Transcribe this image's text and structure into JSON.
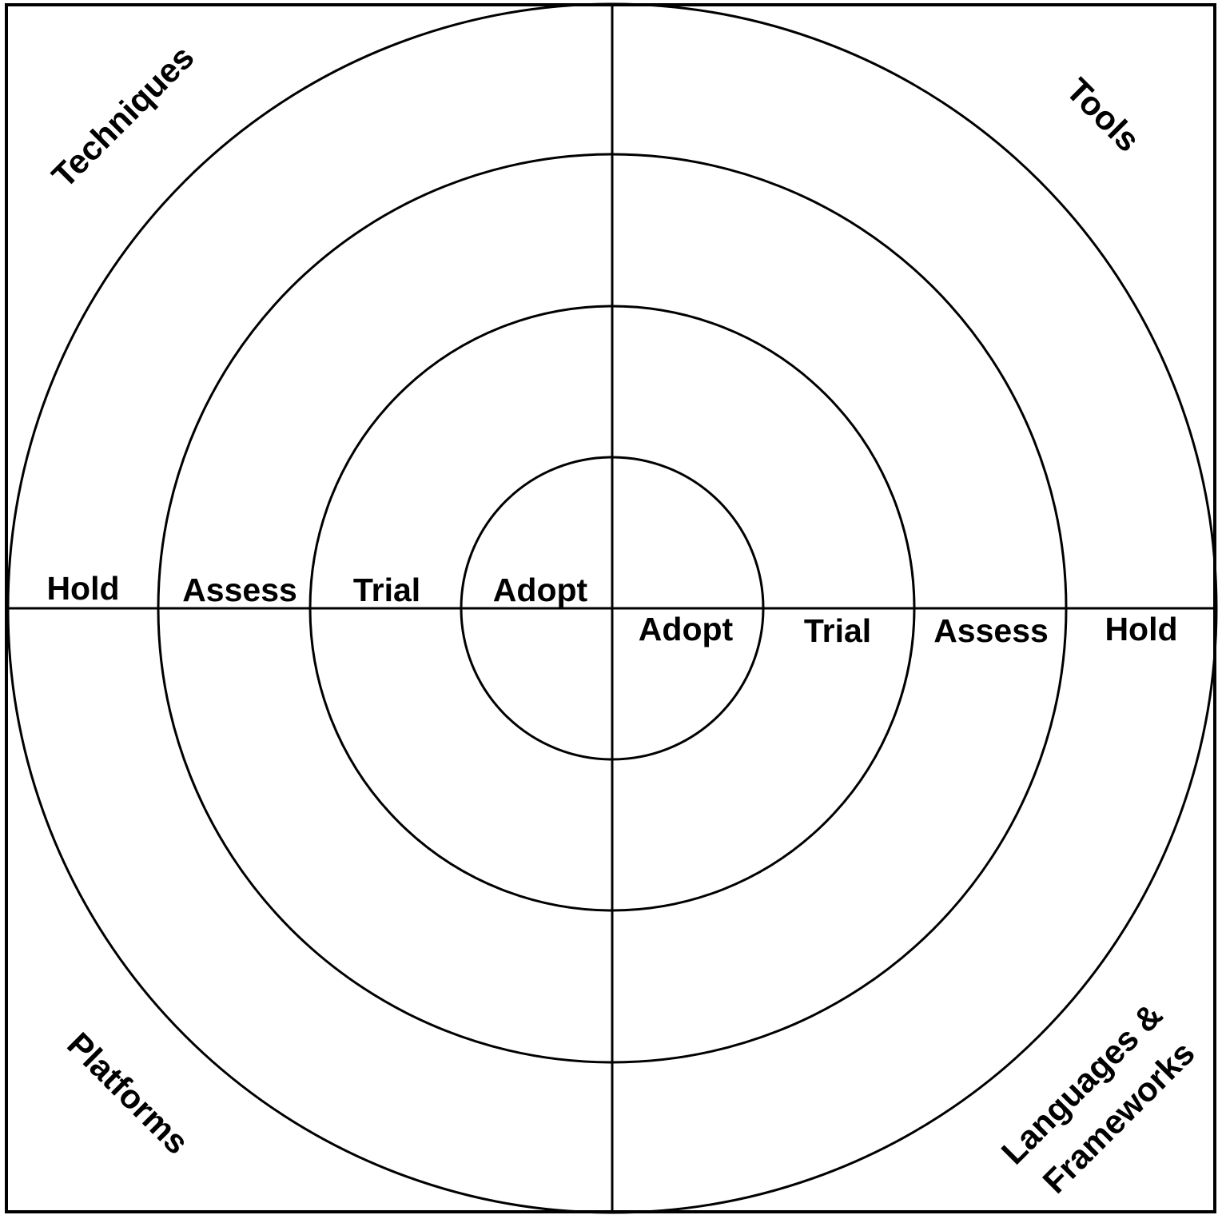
{
  "quadrants": {
    "top_left": "Techniques",
    "top_right": "Tools",
    "bottom_left": "Platforms",
    "bottom_right_line1": "Languages &",
    "bottom_right_line2": "Frameworks"
  },
  "rings_left": {
    "hold": "Hold",
    "assess": "Assess",
    "trial": "Trial",
    "adopt": "Adopt"
  },
  "rings_right": {
    "adopt": "Adopt",
    "trial": "Trial",
    "assess": "Assess",
    "hold": "Hold"
  },
  "colors": {
    "stroke": "#000000",
    "background": "#ffffff"
  }
}
